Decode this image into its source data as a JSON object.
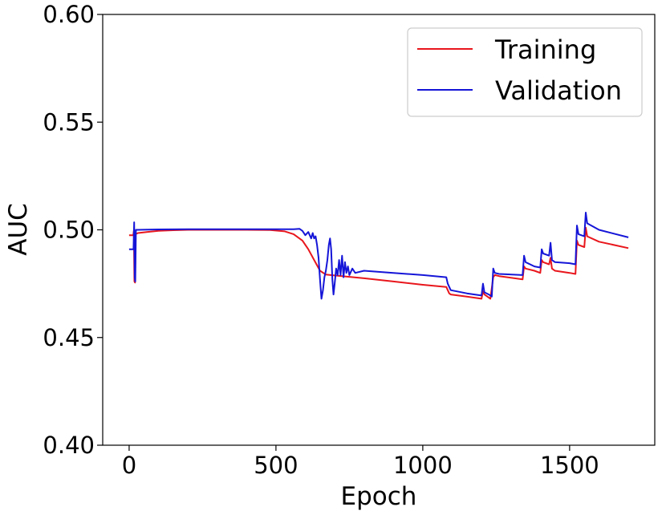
{
  "chart_data": {
    "type": "line",
    "xlabel": "Epoch",
    "ylabel": "AUC",
    "xlim": [
      -90,
      1790
    ],
    "ylim": [
      0.4,
      0.6
    ],
    "xticks": [
      0,
      500,
      1000,
      1500
    ],
    "xtick_labels": [
      "0",
      "500",
      "1000",
      "1500"
    ],
    "yticks": [
      0.4,
      0.45,
      0.5,
      0.55,
      0.6
    ],
    "ytick_labels": [
      "0.40",
      "0.45",
      "0.50",
      "0.55",
      "0.60"
    ],
    "grid": false,
    "legend_position": "top-right",
    "series": [
      {
        "name": "Training",
        "color": "#e8161c",
        "points": [
          [
            0,
            0.4975
          ],
          [
            14,
            0.4975
          ],
          [
            16,
            0.4995
          ],
          [
            18,
            0.476
          ],
          [
            20,
            0.4755
          ],
          [
            22,
            0.498
          ],
          [
            30,
            0.4985
          ],
          [
            60,
            0.499
          ],
          [
            100,
            0.4995
          ],
          [
            150,
            0.4998
          ],
          [
            200,
            0.5
          ],
          [
            300,
            0.5
          ],
          [
            400,
            0.5
          ],
          [
            480,
            0.4999
          ],
          [
            530,
            0.4993
          ],
          [
            560,
            0.498
          ],
          [
            590,
            0.495
          ],
          [
            610,
            0.491
          ],
          [
            630,
            0.486
          ],
          [
            650,
            0.481
          ],
          [
            670,
            0.4792
          ],
          [
            700,
            0.4788
          ],
          [
            800,
            0.4775
          ],
          [
            900,
            0.476
          ],
          [
            1000,
            0.4745
          ],
          [
            1080,
            0.4735
          ],
          [
            1090,
            0.4705
          ],
          [
            1095,
            0.47
          ],
          [
            1150,
            0.469
          ],
          [
            1200,
            0.468
          ],
          [
            1205,
            0.4715
          ],
          [
            1210,
            0.47
          ],
          [
            1220,
            0.469
          ],
          [
            1230,
            0.468
          ],
          [
            1240,
            0.478
          ],
          [
            1245,
            0.479
          ],
          [
            1260,
            0.4785
          ],
          [
            1340,
            0.477
          ],
          [
            1345,
            0.483
          ],
          [
            1350,
            0.482
          ],
          [
            1380,
            0.481
          ],
          [
            1400,
            0.48
          ],
          [
            1405,
            0.486
          ],
          [
            1410,
            0.485
          ],
          [
            1430,
            0.484
          ],
          [
            1435,
            0.487
          ],
          [
            1440,
            0.482
          ],
          [
            1450,
            0.481
          ],
          [
            1500,
            0.48
          ],
          [
            1520,
            0.4795
          ],
          [
            1525,
            0.495
          ],
          [
            1530,
            0.493
          ],
          [
            1550,
            0.492
          ],
          [
            1555,
            0.501
          ],
          [
            1560,
            0.497
          ],
          [
            1600,
            0.4945
          ],
          [
            1700,
            0.4915
          ]
        ]
      },
      {
        "name": "Validation",
        "color": "#1515d8",
        "points": [
          [
            0,
            0.491
          ],
          [
            15,
            0.491
          ],
          [
            17,
            0.5035
          ],
          [
            19,
            0.478
          ],
          [
            21,
            0.476
          ],
          [
            23,
            0.5
          ],
          [
            30,
            0.5
          ],
          [
            100,
            0.5002
          ],
          [
            200,
            0.5003
          ],
          [
            300,
            0.5003
          ],
          [
            400,
            0.5003
          ],
          [
            500,
            0.5003
          ],
          [
            560,
            0.5003
          ],
          [
            580,
            0.5005
          ],
          [
            590,
            0.4995
          ],
          [
            600,
            0.4975
          ],
          [
            610,
            0.499
          ],
          [
            620,
            0.496
          ],
          [
            625,
            0.4985
          ],
          [
            630,
            0.496
          ],
          [
            635,
            0.497
          ],
          [
            640,
            0.493
          ],
          [
            645,
            0.487
          ],
          [
            650,
            0.477
          ],
          [
            655,
            0.468
          ],
          [
            660,
            0.472
          ],
          [
            665,
            0.478
          ],
          [
            670,
            0.481
          ],
          [
            675,
            0.486
          ],
          [
            680,
            0.493
          ],
          [
            684,
            0.496
          ],
          [
            688,
            0.491
          ],
          [
            692,
            0.477
          ],
          [
            696,
            0.47
          ],
          [
            700,
            0.475
          ],
          [
            705,
            0.482
          ],
          [
            710,
            0.479
          ],
          [
            715,
            0.486
          ],
          [
            720,
            0.479
          ],
          [
            725,
            0.488
          ],
          [
            730,
            0.478
          ],
          [
            735,
            0.485
          ],
          [
            740,
            0.48
          ],
          [
            745,
            0.483
          ],
          [
            750,
            0.479
          ],
          [
            760,
            0.482
          ],
          [
            770,
            0.48
          ],
          [
            800,
            0.481
          ],
          [
            900,
            0.48
          ],
          [
            1000,
            0.479
          ],
          [
            1080,
            0.478
          ],
          [
            1085,
            0.475
          ],
          [
            1095,
            0.472
          ],
          [
            1150,
            0.4705
          ],
          [
            1200,
            0.4695
          ],
          [
            1205,
            0.475
          ],
          [
            1210,
            0.471
          ],
          [
            1225,
            0.47
          ],
          [
            1235,
            0.469
          ],
          [
            1240,
            0.482
          ],
          [
            1245,
            0.48
          ],
          [
            1260,
            0.4795
          ],
          [
            1340,
            0.479
          ],
          [
            1345,
            0.488
          ],
          [
            1350,
            0.485
          ],
          [
            1380,
            0.483
          ],
          [
            1400,
            0.4825
          ],
          [
            1405,
            0.491
          ],
          [
            1410,
            0.489
          ],
          [
            1430,
            0.488
          ],
          [
            1435,
            0.494
          ],
          [
            1440,
            0.486
          ],
          [
            1450,
            0.485
          ],
          [
            1500,
            0.4845
          ],
          [
            1520,
            0.484
          ],
          [
            1525,
            0.502
          ],
          [
            1530,
            0.498
          ],
          [
            1550,
            0.497
          ],
          [
            1555,
            0.508
          ],
          [
            1560,
            0.503
          ],
          [
            1600,
            0.5
          ],
          [
            1700,
            0.4965
          ]
        ]
      }
    ]
  }
}
